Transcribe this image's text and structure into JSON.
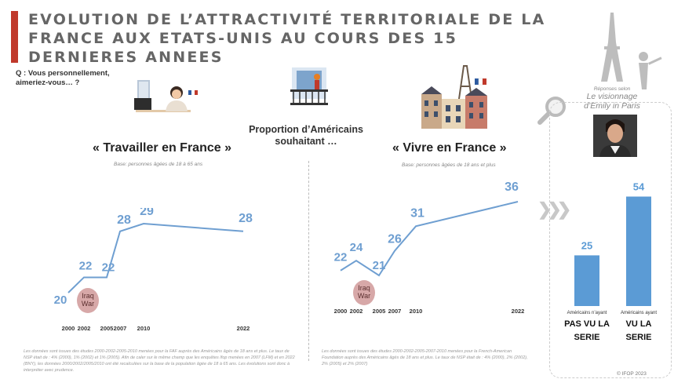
{
  "title": "EVOLUTION DE L’ATTRACTIVITÉ TERRITORIALE DE LA FRANCE AUX ETATS-UNIS AU COURS DES 15 DERNIERES ANNEES",
  "question": "Q : Vous personnellement, aimeriez-vous… ?",
  "center_label": "Proportion d’Américains souhaitant …",
  "emily": {
    "small": "Réponses selon",
    "big": "Le visionnage d’Emily in Paris"
  },
  "copyright": "© IFOP 2023",
  "chart_data": [
    {
      "type": "line",
      "title": "« Travailler en France »",
      "base": "Base: personnes âgées de 18 à 65 ans",
      "x": [
        "2000",
        "2002",
        "2005",
        "2007",
        "2010",
        "2022"
      ],
      "values": [
        20,
        22,
        22,
        28,
        29,
        28
      ],
      "value_labels": [
        "20",
        "22",
        "22",
        "28",
        "29",
        "28"
      ],
      "annotation": "Iraq War",
      "color": "#6f9fd1",
      "footnote": "Les données sont issues des études 2000-2002-2005-2010 menées pour la FAF auprès des Américains âgés de 18 ans et plus. Le taux de NSP était de : 4% (2000), 1% (2002) et 1% (2005). Afin de caler sur le même champ que les enquêtes Ifop menées en 2007 (LFM) et en 2022 (BNY), les données 2000/2002/2005/2010 ont été recalculées sur la base de la population âgée de 18 à 65 ans. Les évolutions sont donc à interpréter avec prudence."
    },
    {
      "type": "line",
      "title": "« Vivre en France »",
      "base": "Base: personnes âgées de 18 ans et plus",
      "x": [
        "2000",
        "2002",
        "2005",
        "2007",
        "2010",
        "2022"
      ],
      "values": [
        22,
        24,
        21,
        26,
        31,
        36
      ],
      "value_labels": [
        "22",
        "24",
        "21",
        "26",
        "31",
        "36"
      ],
      "annotation": "Iraq War",
      "color": "#6f9fd1",
      "footnote": "Les données sont issues des études 2000-2002-2005-2007-2010 menées pour la French-American Foundation auprès des Américains âgés de 18 ans et plus. Le taux de NSP était de : 4% (2000), 2% (2002), 2% (2005) et 2% (2007)"
    },
    {
      "type": "bar",
      "categories": [
        "Américains n’ayant PAS VU LA SERIE",
        "Américains ayant VU LA SERIE"
      ],
      "small_labels": [
        "Américains n’ayant",
        "Américains ayant"
      ],
      "big_labels": [
        "PAS VU LA SERIE",
        "VU LA SERIE"
      ],
      "values": [
        25,
        54
      ],
      "color": "#5b9bd5"
    }
  ]
}
